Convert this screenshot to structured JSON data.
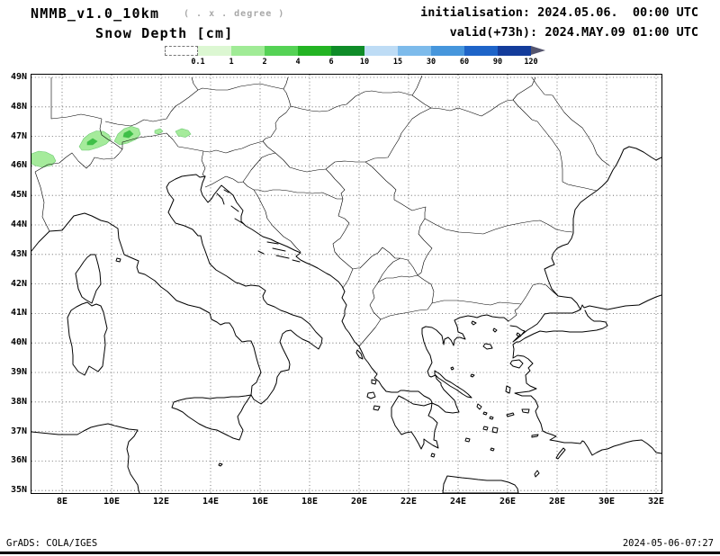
{
  "header": {
    "model": "NMMB_v1.0_10km",
    "resolution_note": "( . x . degree )",
    "variable": "Snow Depth [cm]",
    "initialisation": "initialisation: 2024.05.06.  00:00 UTC",
    "valid": "valid(+73h): 2024.MAY.09 01:00 UTC"
  },
  "colorbar": {
    "tick_labels": [
      "0.1",
      "1",
      "2",
      "4",
      "6",
      "10",
      "15",
      "30",
      "60",
      "90",
      "120"
    ],
    "segment_colors": [
      "#ffffff",
      "#dcf7d2",
      "#a0eb96",
      "#55d255",
      "#23b423",
      "#0f8c28",
      "#bedcf5",
      "#7dbbeb",
      "#4696dc",
      "#1e64c8",
      "#143c9b"
    ],
    "arrow_color": "#55556e"
  },
  "map": {
    "x_tick_labels": [
      "8E",
      "10E",
      "12E",
      "14E",
      "16E",
      "18E",
      "20E",
      "22E",
      "24E",
      "26E",
      "28E",
      "30E",
      "32E"
    ],
    "y_tick_labels": [
      "49N",
      "48N",
      "47N",
      "46N",
      "45N",
      "44N",
      "43N",
      "42N",
      "41N",
      "40N",
      "39N",
      "38N",
      "37N",
      "36N",
      "35N"
    ],
    "snow_color_light": "#a5eb9b",
    "snow_color_dark": "#3fbf48",
    "snow_stroke": "#6ec973"
  },
  "footer": {
    "left": "GrADS: COLA/IGES",
    "right": "2024-05-06-07:27"
  },
  "chart_data": {
    "type": "map",
    "title": "Snow Depth [cm]",
    "model": "NMMB_v1.0_10km",
    "init_time": "2024.05.06. 00:00 UTC",
    "valid_time": "2024.MAY.09 01:00 UTC (+73h)",
    "lon_range_deg_e": [
      8,
      32
    ],
    "lat_range_deg_n": [
      35,
      49
    ],
    "lon_tick_step_deg": 2,
    "lat_tick_step_deg": 1,
    "grid": "dotted",
    "colorbar_levels_cm": [
      0.1,
      1,
      2,
      4,
      6,
      10,
      15,
      30,
      60,
      90,
      120
    ],
    "snow_areas": [
      {
        "region": "Western Alps near 7-8E 46N",
        "depth_cm": "0.1-2"
      },
      {
        "region": "Central Alps 9-11E 46.4-47.2N",
        "depth_cm": "0.1-6"
      },
      {
        "region": "Eastern Alps specks 12-13.3E ~47N",
        "depth_cm": "0.1-1"
      }
    ]
  }
}
